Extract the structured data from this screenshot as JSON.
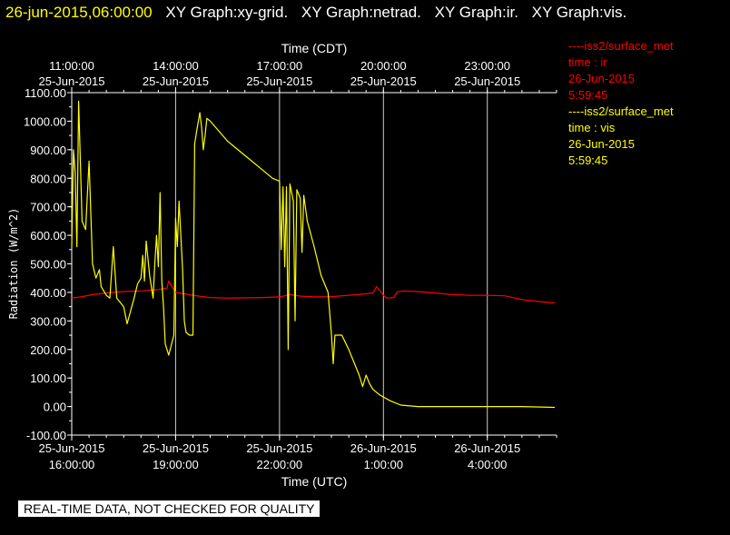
{
  "header": {
    "timestamp": "26-jun-2015,06:00:00",
    "graphs": [
      "XY Graph:xy-grid.",
      "XY Graph:netrad.",
      "XY Graph:ir.",
      "XY Graph:vis."
    ]
  },
  "legend": [
    {
      "lines": [
        "----iss2/surface_met",
        "time : ir",
        "26-Jun-2015",
        "5:59:45"
      ],
      "color": "#ff0000"
    },
    {
      "lines": [
        "----iss2/surface_met",
        "time : vis",
        "26-Jun-2015",
        "5:59:45"
      ],
      "color": "#ffff00"
    }
  ],
  "notice": "REAL-TIME DATA, NOT CHECKED FOR QUALITY",
  "chart_data": {
    "type": "line",
    "ylabel": "Radiation (W/m^2)",
    "xlabel_top": "Time (CDT)",
    "xlabel_bottom": "Time (UTC)",
    "ylim": [
      -100,
      1100
    ],
    "yticks": [
      "-100.00",
      "0.00",
      "100.00",
      "200.00",
      "300.00",
      "400.00",
      "500.00",
      "600.00",
      "700.00",
      "800.00",
      "900.00",
      "1000.00",
      "1100.00"
    ],
    "xlim_utc_hours": [
      16.0,
      30.0
    ],
    "grid": true,
    "top_ticks": [
      {
        "x": 16,
        "time": "11:00:00",
        "date": "25-Jun-2015"
      },
      {
        "x": 19,
        "time": "14:00:00",
        "date": "25-Jun-2015"
      },
      {
        "x": 22,
        "time": "17:00:00",
        "date": "25-Jun-2015"
      },
      {
        "x": 25,
        "time": "20:00:00",
        "date": "25-Jun-2015"
      },
      {
        "x": 28,
        "time": "23:00:00",
        "date": "25-Jun-2015"
      }
    ],
    "bottom_ticks": [
      {
        "x": 16,
        "date": "25-Jun-2015",
        "time": "16:00:00"
      },
      {
        "x": 19,
        "date": "25-Jun-2015",
        "time": "19:00:00"
      },
      {
        "x": 22,
        "date": "25-Jun-2015",
        "time": "22:00:00"
      },
      {
        "x": 25,
        "date": "26-Jun-2015",
        "time": "1:00:00"
      },
      {
        "x": 28,
        "date": "26-Jun-2015",
        "time": "4:00:00"
      }
    ],
    "series": [
      {
        "name": "ir",
        "color": "#ff0000",
        "points": [
          [
            16,
            380
          ],
          [
            16.3,
            385
          ],
          [
            16.6,
            392
          ],
          [
            17,
            398
          ],
          [
            17.5,
            403
          ],
          [
            18,
            405
          ],
          [
            18.5,
            410
          ],
          [
            18.75,
            415
          ],
          [
            18.8,
            440
          ],
          [
            18.9,
            420
          ],
          [
            19,
            400
          ],
          [
            19.5,
            390
          ],
          [
            20,
            382
          ],
          [
            20.5,
            380
          ],
          [
            21,
            381
          ],
          [
            21.5,
            382
          ],
          [
            22,
            384
          ],
          [
            22.3,
            392
          ],
          [
            22.6,
            387
          ],
          [
            23,
            384
          ],
          [
            23.5,
            385
          ],
          [
            24,
            390
          ],
          [
            24.5,
            395
          ],
          [
            24.7,
            398
          ],
          [
            24.8,
            420
          ],
          [
            24.9,
            405
          ],
          [
            25,
            390
          ],
          [
            25.1,
            380
          ],
          [
            25.3,
            382
          ],
          [
            25.4,
            402
          ],
          [
            25.6,
            405
          ],
          [
            26,
            403
          ],
          [
            26.5,
            398
          ],
          [
            27,
            392
          ],
          [
            27.5,
            390
          ],
          [
            28,
            390
          ],
          [
            28.5,
            388
          ],
          [
            29,
            375
          ],
          [
            29.5,
            368
          ],
          [
            29.95,
            363
          ]
        ]
      },
      {
        "name": "vis",
        "color": "#ffff00",
        "points": [
          [
            16,
            560
          ],
          [
            16.05,
            900
          ],
          [
            16.1,
            820
          ],
          [
            16.15,
            560
          ],
          [
            16.2,
            1070
          ],
          [
            16.3,
            650
          ],
          [
            16.4,
            620
          ],
          [
            16.5,
            860
          ],
          [
            16.6,
            500
          ],
          [
            16.7,
            450
          ],
          [
            16.8,
            480
          ],
          [
            16.85,
            420
          ],
          [
            17,
            390
          ],
          [
            17.1,
            380
          ],
          [
            17.2,
            560
          ],
          [
            17.3,
            380
          ],
          [
            17.5,
            350
          ],
          [
            17.6,
            290
          ],
          [
            17.8,
            380
          ],
          [
            17.9,
            430
          ],
          [
            18,
            450
          ],
          [
            18.05,
            530
          ],
          [
            18.1,
            440
          ],
          [
            18.15,
            580
          ],
          [
            18.25,
            460
          ],
          [
            18.3,
            420
          ],
          [
            18.35,
            380
          ],
          [
            18.4,
            500
          ],
          [
            18.45,
            600
          ],
          [
            18.5,
            490
          ],
          [
            18.55,
            750
          ],
          [
            18.6,
            440
          ],
          [
            18.65,
            350
          ],
          [
            18.7,
            220
          ],
          [
            18.8,
            180
          ],
          [
            18.95,
            250
          ],
          [
            19,
            660
          ],
          [
            19.05,
            560
          ],
          [
            19.1,
            720
          ],
          [
            19.2,
            480
          ],
          [
            19.25,
            300
          ],
          [
            19.3,
            260
          ],
          [
            19.4,
            250
          ],
          [
            19.5,
            250
          ],
          [
            19.55,
            920
          ],
          [
            19.6,
            960
          ],
          [
            19.7,
            1030
          ],
          [
            19.75,
            980
          ],
          [
            19.8,
            900
          ],
          [
            19.85,
            950
          ],
          [
            19.9,
            1010
          ],
          [
            20,
            1000
          ],
          [
            20.5,
            930
          ],
          [
            21,
            880
          ],
          [
            21.5,
            830
          ],
          [
            21.8,
            800
          ],
          [
            22,
            790
          ],
          [
            22.05,
            550
          ],
          [
            22.1,
            770
          ],
          [
            22.15,
            490
          ],
          [
            22.2,
            770
          ],
          [
            22.25,
            200
          ],
          [
            22.3,
            780
          ],
          [
            22.4,
            720
          ],
          [
            22.45,
            300
          ],
          [
            22.5,
            760
          ],
          [
            22.6,
            730
          ],
          [
            22.65,
            540
          ],
          [
            22.7,
            740
          ],
          [
            22.8,
            650
          ],
          [
            23,
            560
          ],
          [
            23.2,
            460
          ],
          [
            23.4,
            400
          ],
          [
            23.5,
            250
          ],
          [
            23.55,
            150
          ],
          [
            23.6,
            250
          ],
          [
            23.8,
            250
          ],
          [
            24,
            200
          ],
          [
            24.2,
            140
          ],
          [
            24.3,
            110
          ],
          [
            24.4,
            70
          ],
          [
            24.5,
            110
          ],
          [
            24.6,
            80
          ],
          [
            24.7,
            60
          ],
          [
            24.9,
            40
          ],
          [
            25.2,
            20
          ],
          [
            25.5,
            5
          ],
          [
            26,
            0
          ],
          [
            27,
            0
          ],
          [
            28,
            0
          ],
          [
            29,
            0
          ],
          [
            29.95,
            -3
          ]
        ]
      }
    ]
  }
}
